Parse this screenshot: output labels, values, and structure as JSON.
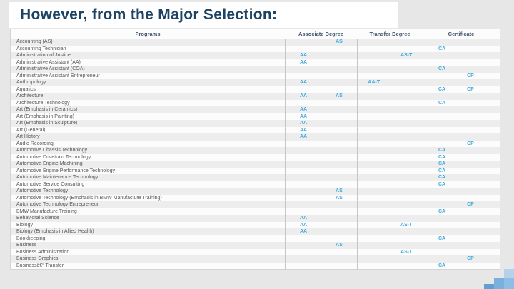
{
  "slide": {
    "title": "However, from the Major Selection:"
  },
  "colors": {
    "title_text": "#1c4364",
    "header_text": "#44546a",
    "degree_code": "#3fa9dc",
    "slide_background": "#e8e7e7",
    "alt_row": "#ededed",
    "decoration_blues": [
      "#b4d2ec",
      "#8fbde5",
      "#7ab0de",
      "#639fd4"
    ]
  },
  "table": {
    "columns": [
      "Programs",
      "Associate Degree",
      "Transfer Degree",
      "Certificate"
    ],
    "rows": [
      {
        "program": "Accounting (AS)",
        "associate": [
          "",
          "AS"
        ],
        "transfer": [
          "",
          ""
        ],
        "certificate": [
          "",
          ""
        ]
      },
      {
        "program": "Accounting Technician",
        "associate": [
          "",
          ""
        ],
        "transfer": [
          "",
          ""
        ],
        "certificate": [
          "CA",
          ""
        ]
      },
      {
        "program": "Administration of Justice",
        "associate": [
          "AA",
          ""
        ],
        "transfer": [
          "",
          "AS-T"
        ],
        "certificate": [
          "",
          ""
        ]
      },
      {
        "program": "Administrative Assistant (AA)",
        "associate": [
          "AA",
          ""
        ],
        "transfer": [
          "",
          ""
        ],
        "certificate": [
          "",
          ""
        ]
      },
      {
        "program": "Administrative Assistant (COA)",
        "associate": [
          "",
          ""
        ],
        "transfer": [
          "",
          ""
        ],
        "certificate": [
          "CA",
          ""
        ]
      },
      {
        "program": "Administrative Assistant Entrepreneur",
        "associate": [
          "",
          ""
        ],
        "transfer": [
          "",
          ""
        ],
        "certificate": [
          "",
          "CP"
        ]
      },
      {
        "program": "Anthropology",
        "associate": [
          "AA",
          ""
        ],
        "transfer": [
          "AA-T",
          ""
        ],
        "certificate": [
          "",
          ""
        ]
      },
      {
        "program": "Aquatics",
        "associate": [
          "",
          ""
        ],
        "transfer": [
          "",
          ""
        ],
        "certificate": [
          "CA",
          "CP"
        ]
      },
      {
        "program": "Architecture",
        "associate": [
          "AA",
          "AS"
        ],
        "transfer": [
          "",
          ""
        ],
        "certificate": [
          "",
          ""
        ]
      },
      {
        "program": "Architecture Technology",
        "associate": [
          "",
          ""
        ],
        "transfer": [
          "",
          ""
        ],
        "certificate": [
          "CA",
          ""
        ]
      },
      {
        "program": "Art (Emphasis in Ceramics)",
        "associate": [
          "AA",
          ""
        ],
        "transfer": [
          "",
          ""
        ],
        "certificate": [
          "",
          ""
        ]
      },
      {
        "program": "Art (Emphasis in Painting)",
        "associate": [
          "AA",
          ""
        ],
        "transfer": [
          "",
          ""
        ],
        "certificate": [
          "",
          ""
        ]
      },
      {
        "program": "Art (Emphasis in Sculpture)",
        "associate": [
          "AA",
          ""
        ],
        "transfer": [
          "",
          ""
        ],
        "certificate": [
          "",
          ""
        ]
      },
      {
        "program": "Art (General)",
        "associate": [
          "AA",
          ""
        ],
        "transfer": [
          "",
          ""
        ],
        "certificate": [
          "",
          ""
        ]
      },
      {
        "program": "Art History",
        "associate": [
          "AA",
          ""
        ],
        "transfer": [
          "",
          ""
        ],
        "certificate": [
          "",
          ""
        ]
      },
      {
        "program": "Audio Recording",
        "associate": [
          "",
          ""
        ],
        "transfer": [
          "",
          ""
        ],
        "certificate": [
          "",
          "CP"
        ]
      },
      {
        "program": "Automotive Chassis Technology",
        "associate": [
          "",
          ""
        ],
        "transfer": [
          "",
          ""
        ],
        "certificate": [
          "CA",
          ""
        ]
      },
      {
        "program": "Automotive Drivetrain Technology",
        "associate": [
          "",
          ""
        ],
        "transfer": [
          "",
          ""
        ],
        "certificate": [
          "CA",
          ""
        ]
      },
      {
        "program": "Automotive Engine Machining",
        "associate": [
          "",
          ""
        ],
        "transfer": [
          "",
          ""
        ],
        "certificate": [
          "CA",
          ""
        ]
      },
      {
        "program": "Automotive Engine Performance Technology",
        "associate": [
          "",
          ""
        ],
        "transfer": [
          "",
          ""
        ],
        "certificate": [
          "CA",
          ""
        ]
      },
      {
        "program": "Automotive Maintenance Technology",
        "associate": [
          "",
          ""
        ],
        "transfer": [
          "",
          ""
        ],
        "certificate": [
          "CA",
          ""
        ]
      },
      {
        "program": "Automotive Service Consulting",
        "associate": [
          "",
          ""
        ],
        "transfer": [
          "",
          ""
        ],
        "certificate": [
          "CA",
          ""
        ]
      },
      {
        "program": "Automotive Technology",
        "associate": [
          "",
          "AS"
        ],
        "transfer": [
          "",
          ""
        ],
        "certificate": [
          "",
          ""
        ]
      },
      {
        "program": "Automotive Technology (Emphasis in BMW Manufacture Training)",
        "associate": [
          "",
          "AS"
        ],
        "transfer": [
          "",
          ""
        ],
        "certificate": [
          "",
          ""
        ]
      },
      {
        "program": "Automotive Technology Entrepreneur",
        "associate": [
          "",
          ""
        ],
        "transfer": [
          "",
          ""
        ],
        "certificate": [
          "",
          "CP"
        ]
      },
      {
        "program": "BMW Manufacture Training",
        "associate": [
          "",
          ""
        ],
        "transfer": [
          "",
          ""
        ],
        "certificate": [
          "CA",
          ""
        ]
      },
      {
        "program": "Behavioral Science",
        "associate": [
          "AA",
          ""
        ],
        "transfer": [
          "",
          ""
        ],
        "certificate": [
          "",
          ""
        ]
      },
      {
        "program": "Biology",
        "associate": [
          "AA",
          ""
        ],
        "transfer": [
          "",
          "AS-T"
        ],
        "certificate": [
          "",
          ""
        ]
      },
      {
        "program": "Biology (Emphasis in Allied Health)",
        "associate": [
          "AA",
          ""
        ],
        "transfer": [
          "",
          ""
        ],
        "certificate": [
          "",
          ""
        ]
      },
      {
        "program": "Bookkeeping",
        "associate": [
          "",
          ""
        ],
        "transfer": [
          "",
          ""
        ],
        "certificate": [
          "CA",
          ""
        ]
      },
      {
        "program": "Business",
        "associate": [
          "",
          "AS"
        ],
        "transfer": [
          "",
          ""
        ],
        "certificate": [
          "",
          ""
        ]
      },
      {
        "program": "Business Administration",
        "associate": [
          "",
          ""
        ],
        "transfer": [
          "",
          "AS-T"
        ],
        "certificate": [
          "",
          ""
        ]
      },
      {
        "program": "Business Graphics",
        "associate": [
          "",
          ""
        ],
        "transfer": [
          "",
          ""
        ],
        "certificate": [
          "",
          "CP"
        ]
      },
      {
        "program": "Businessâ€“ Transfer",
        "associate": [
          "",
          ""
        ],
        "transfer": [
          "",
          ""
        ],
        "certificate": [
          "CA",
          ""
        ]
      }
    ]
  }
}
